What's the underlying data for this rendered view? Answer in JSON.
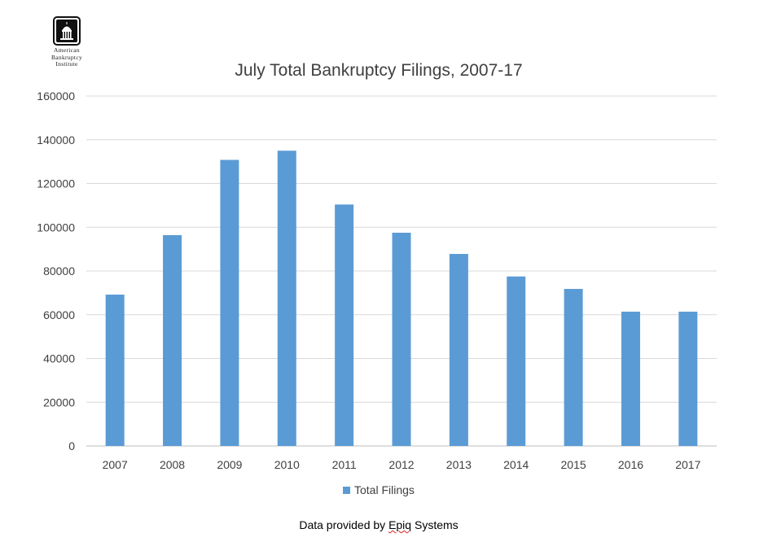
{
  "logo": {
    "lines": [
      "American",
      "Bankruptcy",
      "Institute"
    ],
    "icon": "capitol-dome-icon"
  },
  "footer": {
    "before": "Data provided by ",
    "underlined": "Epiq",
    "after": " Systems"
  },
  "colors": {
    "bar": "#5b9bd5",
    "grid": "#d9d9d9",
    "axis": "#bfbfbf",
    "text": "#404040"
  },
  "chart_data": {
    "type": "bar",
    "title": "July Total Bankruptcy Filings, 2007-17",
    "xlabel": "",
    "ylabel": "",
    "categories": [
      "2007",
      "2008",
      "2009",
      "2010",
      "2011",
      "2012",
      "2013",
      "2014",
      "2015",
      "2016",
      "2017"
    ],
    "series": [
      {
        "name": "Total Filings",
        "values": [
          69200,
          96400,
          130800,
          135000,
          110400,
          97500,
          87800,
          77500,
          71800,
          61400,
          61400
        ]
      }
    ],
    "ylim": [
      0,
      160000
    ],
    "yticks": [
      "0",
      "20000",
      "40000",
      "60000",
      "80000",
      "100000",
      "120000",
      "140000",
      "160000"
    ],
    "grid": true,
    "legend_position": "bottom"
  }
}
